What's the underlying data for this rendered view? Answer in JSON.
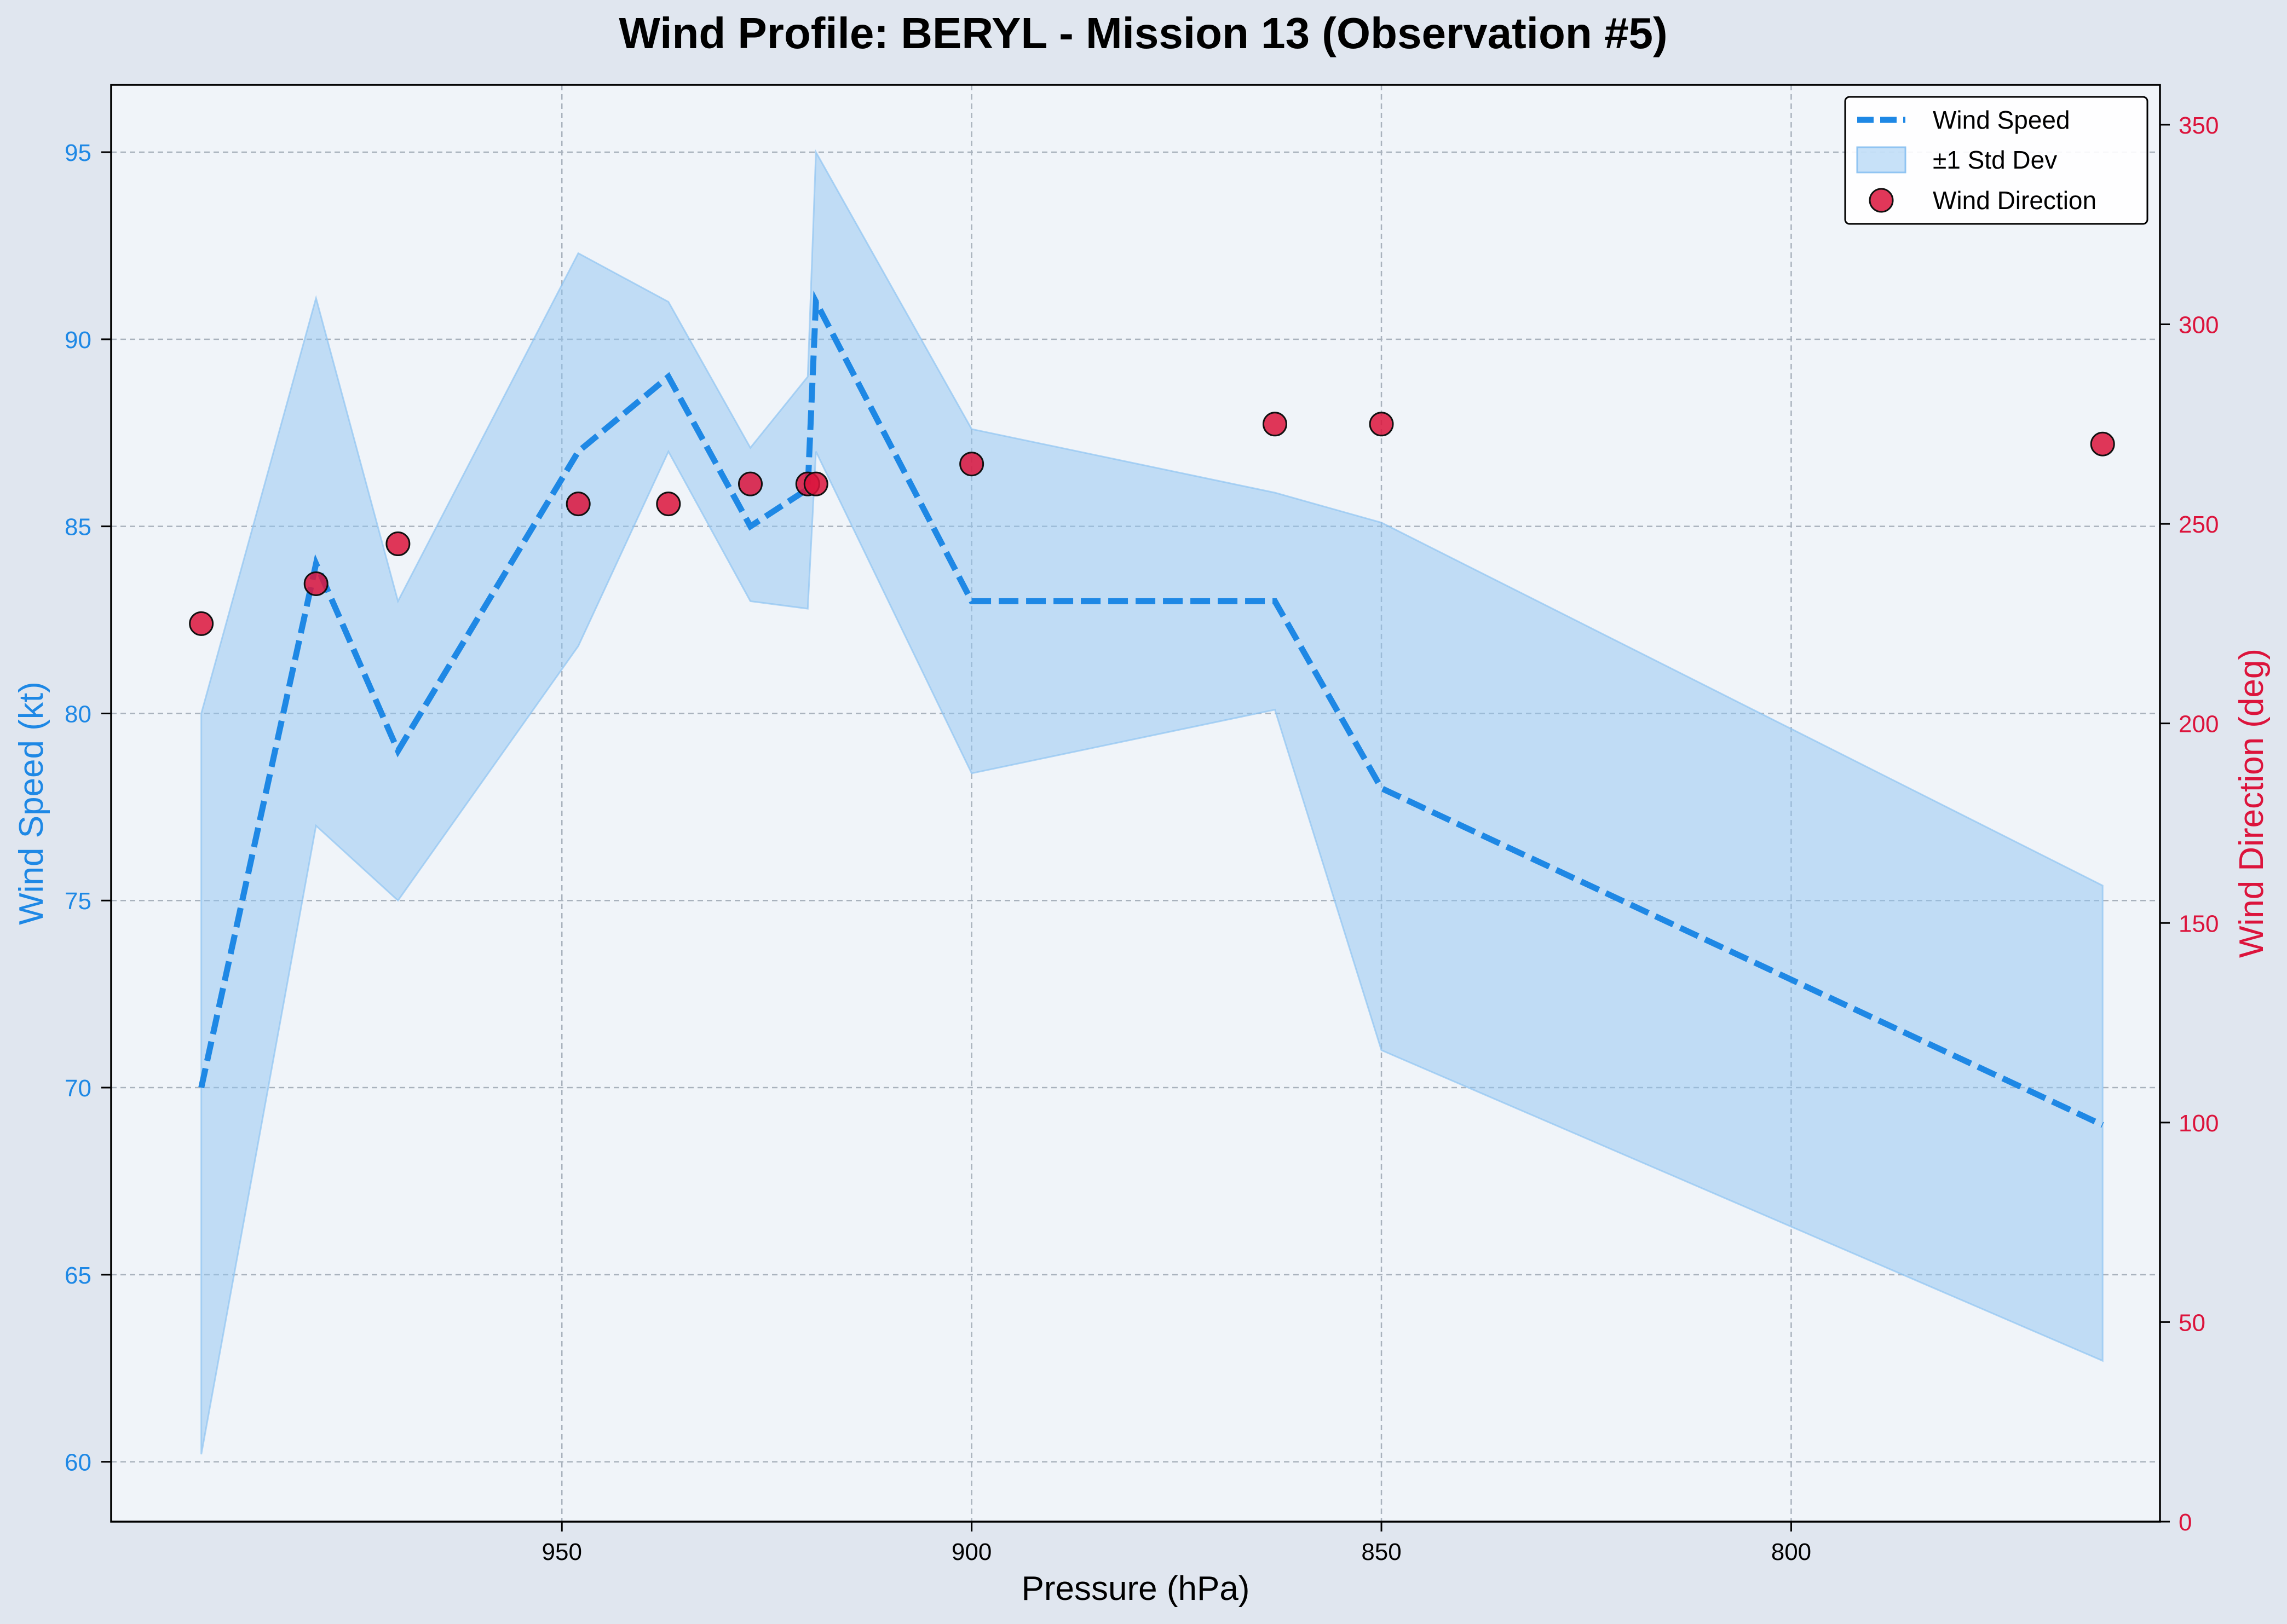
{
  "chart_data": {
    "type": "line",
    "title": "Wind Profile: BERYL - Mission 13 (Observation #5)",
    "xlabel": "Pressure (hPa)",
    "ylabel_left": "Wind Speed (kt)",
    "ylabel_right": "Wind Direction (deg)",
    "x_reversed": true,
    "xlim": [
      1005,
      755
    ],
    "ylim_left": [
      58.4,
      96.8
    ],
    "ylim_right": [
      0,
      360
    ],
    "x_ticks": [
      950,
      900,
      850,
      800
    ],
    "x_tick_labels": [
      "950",
      "900",
      "850",
      "800"
    ],
    "y_left_ticks": [
      60,
      65,
      70,
      75,
      80,
      85,
      90,
      95
    ],
    "y_left_tick_labels": [
      "60",
      "65",
      "70",
      "75",
      "80",
      "85",
      "90",
      "95"
    ],
    "y_right_ticks": [
      0,
      50,
      100,
      150,
      200,
      250,
      300,
      350
    ],
    "y_right_tick_labels": [
      "0",
      "50",
      "100",
      "150",
      "200",
      "250",
      "300",
      "350"
    ],
    "grid": true,
    "legend_position": "top-right",
    "colors": {
      "wind_speed": "#1e88e5",
      "band": "#90c4f2",
      "wind_direction": "#dc143c",
      "plot_bg": "#f0f4f9",
      "page_bg": "#e0e6ef"
    },
    "series": [
      {
        "name": "Wind Speed",
        "kind": "line",
        "style": "dashed",
        "x": [
          994,
          980,
          970,
          948,
          937,
          927,
          920,
          919,
          900,
          863,
          850,
          762
        ],
        "y": [
          70,
          84,
          79,
          87,
          89,
          85,
          86,
          91,
          83,
          83,
          78,
          69
        ]
      },
      {
        "name": "±1 Std Dev",
        "kind": "band",
        "x": [
          994,
          980,
          970,
          948,
          937,
          927,
          920,
          919,
          900,
          863,
          850,
          762
        ],
        "lower": [
          60.2,
          77.0,
          75.0,
          81.8,
          87.0,
          83.0,
          82.8,
          87.0,
          78.4,
          80.1,
          71.0,
          62.7
        ],
        "upper": [
          80.0,
          91.1,
          83.0,
          92.3,
          91.0,
          87.1,
          89.0,
          95.0,
          87.6,
          85.9,
          85.1,
          75.4
        ]
      },
      {
        "name": "Wind Direction",
        "kind": "scatter",
        "axis": "right",
        "x": [
          994,
          980,
          970,
          948,
          937,
          927,
          920,
          919,
          900,
          863,
          850,
          762
        ],
        "y": [
          225,
          235,
          245,
          255,
          255,
          260,
          260,
          260,
          265,
          275,
          275,
          270
        ]
      }
    ]
  }
}
